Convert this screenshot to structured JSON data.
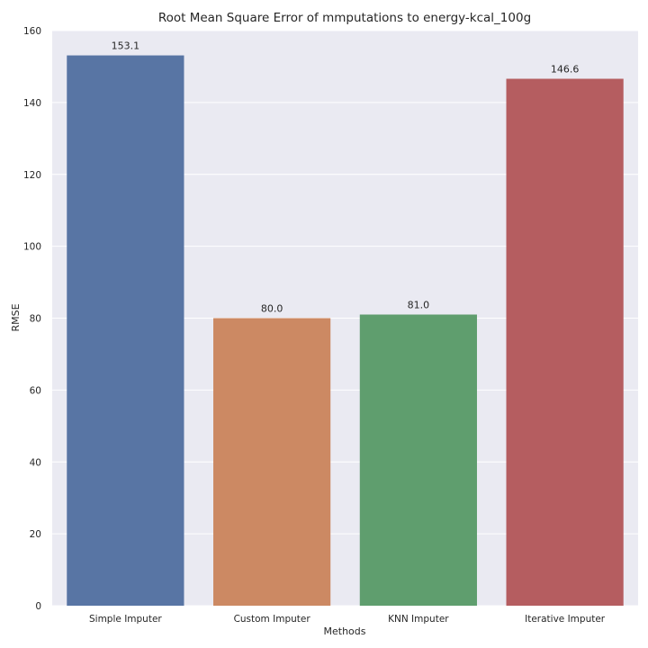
{
  "chart_data": {
    "type": "bar",
    "title": "Root Mean Square Error of mmputations to energy-kcal_100g",
    "xlabel": "Methods",
    "ylabel": "RMSE",
    "categories": [
      "Simple Imputer",
      "Custom Imputer",
      "KNN Imputer",
      "Iterative Imputer"
    ],
    "values": [
      153.1,
      80.0,
      81.0,
      146.6
    ],
    "data_labels": [
      "153.1",
      "80.0",
      "81.0",
      "146.6"
    ],
    "colors": [
      "#5875a4",
      "#cc8963",
      "#5f9e6e",
      "#b55d60"
    ],
    "ylim": [
      0,
      160
    ],
    "yticks": [
      0,
      20,
      40,
      60,
      80,
      100,
      120,
      140,
      160
    ],
    "grid": true,
    "background": "#eaeaf2"
  }
}
